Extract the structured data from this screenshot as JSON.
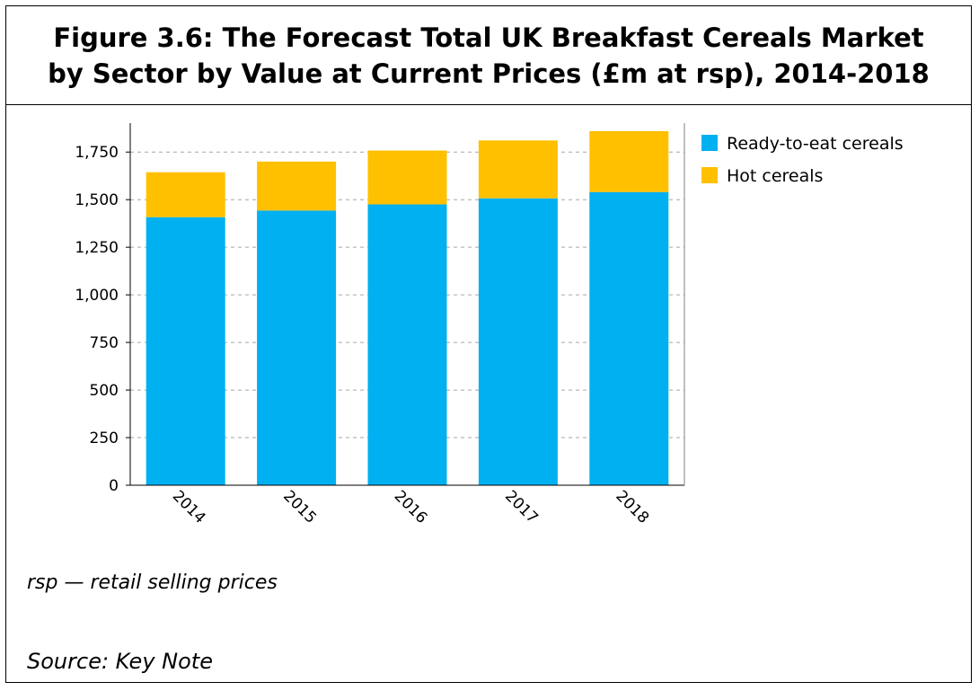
{
  "figure": {
    "title": "Figure 3.6: The Forecast Total UK Breakfast Cereals Market by Sector by Value at Current Prices (£m at rsp), 2014-2018",
    "note": "rsp — retail selling prices",
    "source": "Source: Key Note"
  },
  "chart_data": {
    "type": "bar",
    "stacked": true,
    "title": "The Forecast Total UK Breakfast Cereals Market by Sector by Value at Current Prices (£m at rsp), 2014-2018",
    "xlabel": "",
    "ylabel": "",
    "categories": [
      "2014",
      "2015",
      "2016",
      "2017",
      "2018"
    ],
    "series": [
      {
        "name": "Ready-to-eat cereals",
        "color": "#00b0f0",
        "values": [
          1408,
          1443,
          1475,
          1507,
          1540
        ]
      },
      {
        "name": "Hot cereals",
        "color": "#ffc000",
        "values": [
          236,
          257,
          283,
          304,
          320
        ]
      }
    ],
    "ylim": [
      0,
      1900
    ],
    "yticks": [
      0,
      250,
      500,
      750,
      1000,
      1250,
      1500,
      1750
    ],
    "ytick_labels": [
      "0",
      "250",
      "500",
      "750",
      "1,000",
      "1,250",
      "1,500",
      "1,750"
    ],
    "grid": true,
    "legend": "top-right"
  }
}
